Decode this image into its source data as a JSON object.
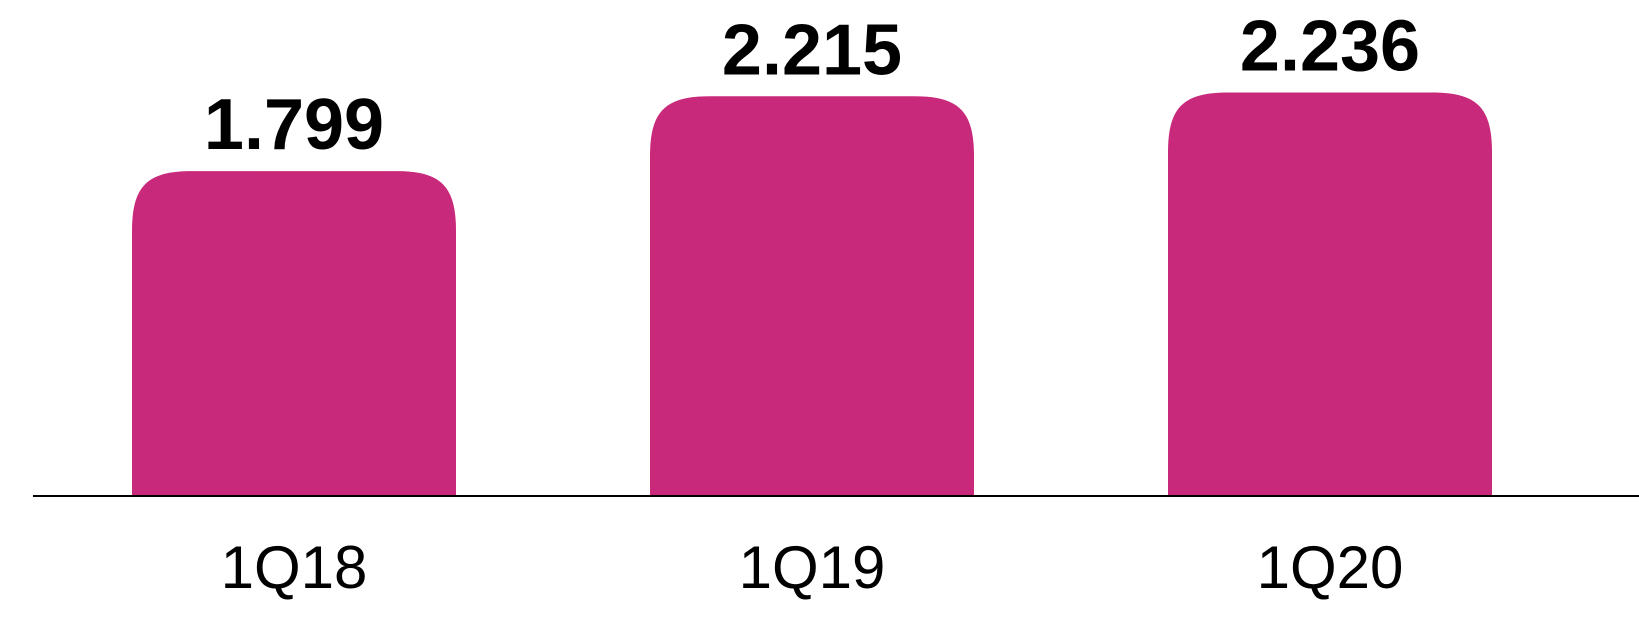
{
  "chart_data": {
    "type": "bar",
    "categories": [
      "1Q18",
      "1Q19",
      "1Q20"
    ],
    "values": [
      1.799,
      2.215,
      2.236
    ],
    "color": "#c9297a",
    "ylim": [
      0,
      2.75
    ]
  }
}
